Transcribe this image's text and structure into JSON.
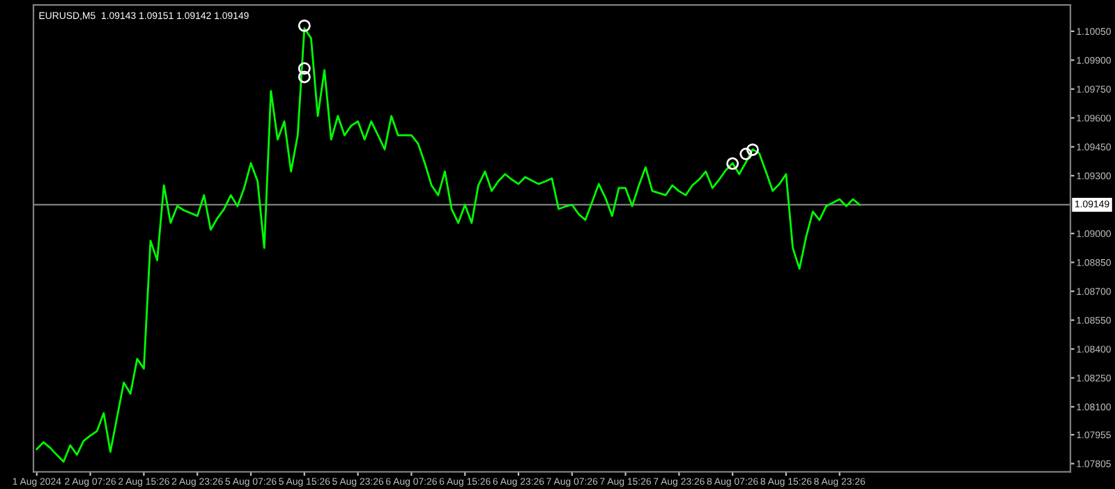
{
  "chart_data": {
    "type": "line",
    "title": "EURUSD,M5  1.09143 1.09151 1.09142 1.09149",
    "categories": [
      "1 Aug 2024",
      null,
      null,
      null,
      null,
      null,
      null,
      null,
      "2 Aug 07:26",
      null,
      null,
      null,
      null,
      null,
      null,
      null,
      "2 Aug 15:26",
      null,
      null,
      null,
      null,
      null,
      null,
      null,
      "2 Aug 23:26",
      null,
      null,
      null,
      null,
      null,
      null,
      null,
      "5 Aug 07:26",
      null,
      null,
      null,
      null,
      null,
      null,
      null,
      "5 Aug 15:26",
      null,
      null,
      null,
      null,
      null,
      null,
      null,
      "5 Aug 23:26",
      null,
      null,
      null,
      null,
      null,
      null,
      null,
      "6 Aug 07:26",
      null,
      null,
      null,
      null,
      null,
      null,
      null,
      "6 Aug 15:26",
      null,
      null,
      null,
      null,
      null,
      null,
      null,
      "6 Aug 23:26",
      null,
      null,
      null,
      null,
      null,
      null,
      null,
      "7 Aug 07:26",
      null,
      null,
      null,
      null,
      null,
      null,
      null,
      "7 Aug 15:26",
      null,
      null,
      null,
      null,
      null,
      null,
      null,
      "7 Aug 23:26",
      null,
      null,
      null,
      null,
      null,
      null,
      null,
      "8 Aug 07:26",
      null,
      null,
      null,
      null,
      null,
      null,
      null,
      "8 Aug 15:26",
      null,
      null,
      null,
      null,
      null,
      null,
      null,
      "8 Aug 23:26",
      null,
      null,
      null,
      null,
      null,
      null,
      null,
      null,
      null,
      null,
      null,
      null,
      null,
      null,
      null,
      null,
      null,
      null,
      null,
      null,
      null,
      null,
      null,
      null,
      null,
      null,
      null,
      null,
      null,
      null,
      null,
      null,
      null,
      null
    ],
    "series": [
      {
        "color": "#00ff00",
        "values": [
          1.0788,
          1.07916,
          1.07887,
          1.0785,
          1.07815,
          1.079,
          1.07851,
          1.07923,
          1.0795,
          1.07974,
          1.08067,
          1.07866,
          1.08046,
          1.08226,
          1.08168,
          1.08349,
          1.08298,
          1.08962,
          1.08861,
          1.0925,
          1.09055,
          1.09142,
          1.0912,
          1.09106,
          1.09091,
          1.09199,
          1.09019,
          1.0908,
          1.09127,
          1.09199,
          1.09142,
          1.09236,
          1.09365,
          1.09272,
          1.08925,
          1.0974,
          1.09488,
          1.09582,
          1.09322,
          1.0951,
          1.10065,
          1.10014,
          1.0961,
          1.09848,
          1.09488,
          1.0961,
          1.0951,
          1.0956,
          1.09582,
          1.09488,
          1.09582,
          1.0951,
          1.09437,
          1.0961,
          1.0951,
          1.0951,
          1.0951,
          1.09466,
          1.09365,
          1.0925,
          1.09199,
          1.09322,
          1.09127,
          1.09055,
          1.09149,
          1.09055,
          1.0925,
          1.09322,
          1.09221,
          1.09272,
          1.09308,
          1.0928,
          1.09257,
          1.09293,
          1.09275,
          1.09257,
          1.0927,
          1.09286,
          1.09127,
          1.0914,
          1.09149,
          1.091,
          1.0907,
          1.09163,
          1.09257,
          1.09185,
          1.09091,
          1.09236,
          1.09236,
          1.09142,
          1.0925,
          1.09344,
          1.09221,
          1.0921,
          1.09199,
          1.0925,
          1.0922,
          1.09199,
          1.0925,
          1.0928,
          1.09322,
          1.09236,
          1.0928,
          1.09329,
          1.09365,
          1.09308,
          1.0937,
          1.09437,
          1.09416,
          1.0932,
          1.09221,
          1.09257,
          1.09308,
          1.08925,
          1.08817,
          1.08983,
          1.09113,
          1.0907,
          1.09142,
          1.0916,
          1.09178,
          1.09142,
          1.09178,
          1.09149,
          null,
          null,
          null,
          null,
          null,
          null,
          null,
          null,
          null,
          null,
          null,
          null,
          null,
          null,
          null,
          null,
          null,
          null,
          null,
          null,
          null,
          null,
          null,
          null,
          null,
          null,
          null,
          null,
          null,
          null,
          null
        ]
      },
      {
        "type": "scatter",
        "marker": "circle",
        "color": "#ffffff",
        "values": [
          null,
          null,
          null,
          null,
          null,
          null,
          null,
          null,
          null,
          null,
          null,
          null,
          null,
          null,
          null,
          null,
          null,
          null,
          null,
          null,
          null,
          null,
          null,
          null,
          null,
          null,
          null,
          null,
          null,
          null,
          null,
          null,
          null,
          null,
          null,
          null,
          null,
          null,
          null,
          null,
          1.10079,
          null,
          null,
          null,
          null,
          null,
          null,
          null,
          null,
          null,
          null,
          null,
          null,
          null,
          null,
          null,
          null,
          null,
          null,
          null,
          null,
          null,
          null,
          null,
          null,
          null,
          null,
          null,
          null,
          null,
          null,
          null,
          null,
          null,
          null,
          null,
          null,
          null,
          null,
          null,
          null,
          null,
          null,
          null,
          null,
          null,
          null,
          null,
          null,
          null,
          null,
          null,
          null,
          null,
          null,
          null,
          null,
          null,
          null,
          null,
          null,
          null,
          null,
          null,
          1.09363,
          null,
          null,
          null,
          null,
          null,
          null,
          null,
          null,
          null,
          null,
          null,
          null,
          null,
          null,
          null,
          null,
          null,
          null,
          null,
          null,
          null,
          null,
          null,
          null,
          null,
          null,
          null,
          null,
          null,
          null,
          null,
          null,
          null,
          null,
          null,
          null,
          null,
          null,
          null,
          null,
          null,
          null,
          null,
          null,
          null,
          null,
          null,
          null,
          null,
          null
        ]
      },
      {
        "type": "scatter",
        "marker": "circle",
        "color": "#ffffff",
        "values": [
          null,
          null,
          null,
          null,
          null,
          null,
          null,
          null,
          null,
          null,
          null,
          null,
          null,
          null,
          null,
          null,
          null,
          null,
          null,
          null,
          null,
          null,
          null,
          null,
          null,
          null,
          null,
          null,
          null,
          null,
          null,
          null,
          null,
          null,
          null,
          null,
          null,
          null,
          null,
          null,
          1.09857,
          null,
          null,
          null,
          null,
          null,
          null,
          null,
          null,
          null,
          null,
          null,
          null,
          null,
          null,
          null,
          null,
          null,
          null,
          null,
          null,
          null,
          null,
          null,
          null,
          null,
          null,
          null,
          null,
          null,
          null,
          null,
          null,
          null,
          null,
          null,
          null,
          null,
          null,
          null,
          null,
          null,
          null,
          null,
          null,
          null,
          null,
          null,
          null,
          null,
          null,
          null,
          null,
          null,
          null,
          null,
          null,
          null,
          null,
          null,
          null,
          null,
          null,
          null,
          null,
          null,
          1.09413,
          null,
          null,
          null,
          null,
          null,
          null,
          null,
          null,
          null,
          null,
          null,
          null,
          null,
          null,
          null,
          null,
          null,
          null,
          null,
          null,
          null,
          null,
          null,
          null,
          null,
          null,
          null,
          null,
          null,
          null,
          null,
          null,
          null,
          null,
          null,
          null,
          null,
          null,
          null,
          null,
          null,
          null,
          null,
          null,
          null,
          null,
          null,
          null
        ]
      },
      {
        "type": "scatter",
        "marker": "circle",
        "color": "#ffffff",
        "values": [
          null,
          null,
          null,
          null,
          null,
          null,
          null,
          null,
          null,
          null,
          null,
          null,
          null,
          null,
          null,
          null,
          null,
          null,
          null,
          null,
          null,
          null,
          null,
          null,
          null,
          null,
          null,
          null,
          null,
          null,
          null,
          null,
          null,
          null,
          null,
          null,
          null,
          null,
          null,
          null,
          1.09813,
          null,
          null,
          null,
          null,
          null,
          null,
          null,
          null,
          null,
          null,
          null,
          null,
          null,
          null,
          null,
          null,
          null,
          null,
          null,
          null,
          null,
          null,
          null,
          null,
          null,
          null,
          null,
          null,
          null,
          null,
          null,
          null,
          null,
          null,
          null,
          null,
          null,
          null,
          null,
          null,
          null,
          null,
          null,
          null,
          null,
          null,
          null,
          null,
          null,
          null,
          null,
          null,
          null,
          null,
          null,
          null,
          null,
          null,
          null,
          null,
          null,
          null,
          null,
          null,
          null,
          null,
          1.09435,
          null,
          null,
          null,
          null,
          null,
          null,
          null,
          null,
          null,
          null,
          null,
          null,
          null,
          null,
          null,
          null,
          null,
          null,
          null,
          null,
          null,
          null,
          null,
          null,
          null,
          null,
          null,
          null,
          null,
          null,
          null,
          null,
          null,
          null,
          null,
          null,
          null,
          null,
          null,
          null,
          null,
          null,
          null,
          null,
          null,
          null,
          null
        ]
      }
    ],
    "ylim": [
      1.07762,
      1.10187
    ],
    "yticks": [
      {
        "value": 1.1005,
        "label": "1.10050"
      },
      {
        "value": 1.099,
        "label": "1.09900"
      },
      {
        "value": 1.0975,
        "label": "1.09750"
      },
      {
        "value": 1.096,
        "label": "1.09600"
      },
      {
        "value": 1.0945,
        "label": "1.09450"
      },
      {
        "value": 1.093,
        "label": "1.09300"
      },
      {
        "value": 1.09,
        "label": "1.09000"
      },
      {
        "value": 1.0885,
        "label": "1.08850"
      },
      {
        "value": 1.087,
        "label": "1.08700"
      },
      {
        "value": 1.0855,
        "label": "1.08550"
      },
      {
        "value": 1.084,
        "label": "1.08400"
      },
      {
        "value": 1.0825,
        "label": "1.08250"
      },
      {
        "value": 1.081,
        "label": "1.08100"
      },
      {
        "value": 1.07955,
        "label": "1.07955"
      },
      {
        "value": 1.07805,
        "label": "1.07805"
      }
    ],
    "ref_lines": [
      {
        "axis": "y",
        "value": 1.09149,
        "label": "1.09149",
        "color": "#808080"
      }
    ],
    "grid": false
  }
}
